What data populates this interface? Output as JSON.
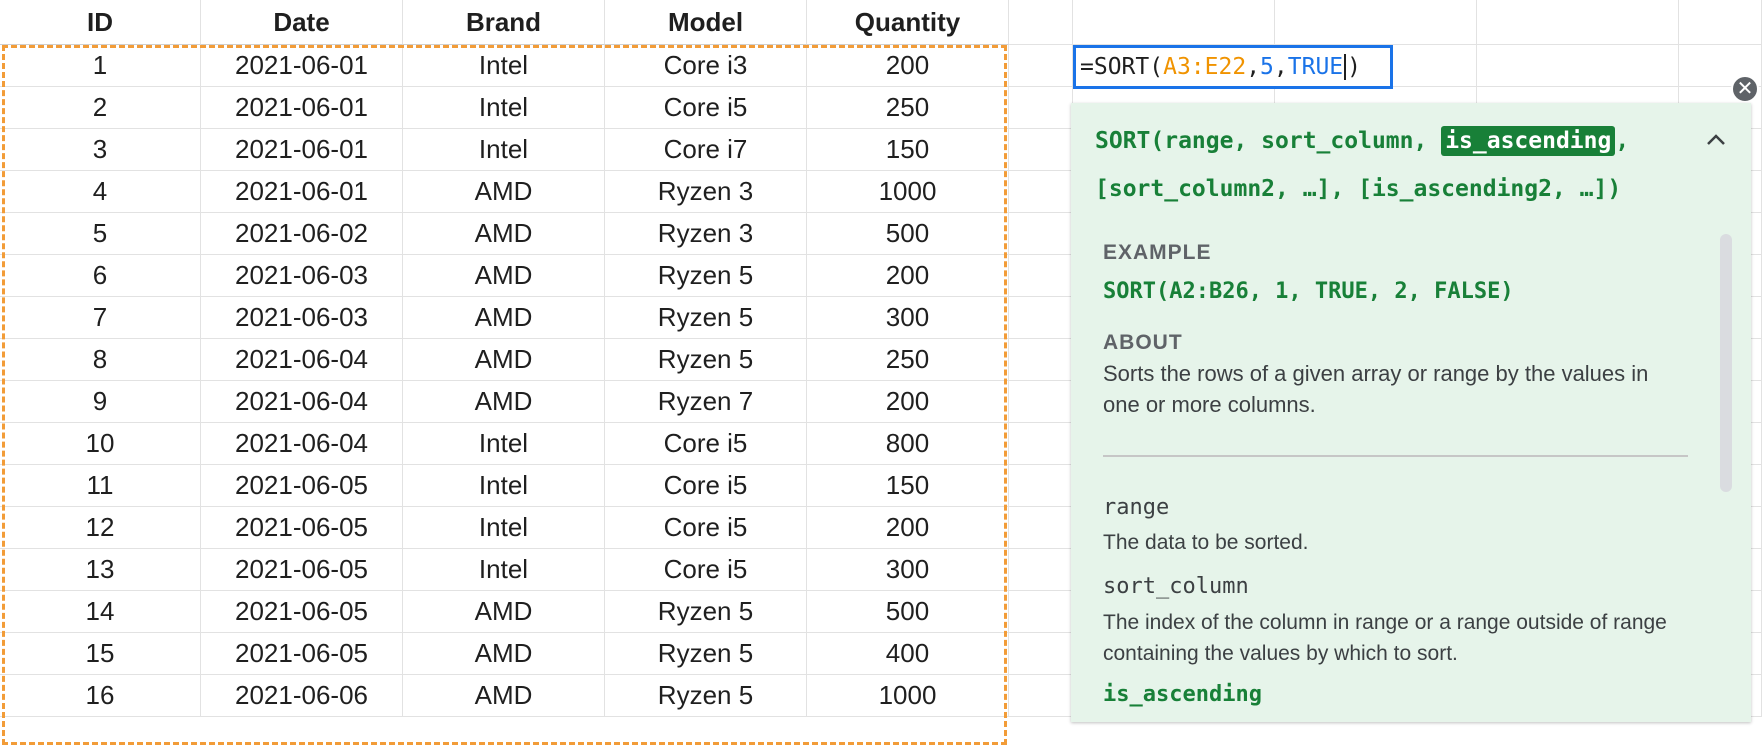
{
  "sheet": {
    "headers": [
      "ID",
      "Date",
      "Brand",
      "Model",
      "Quantity"
    ],
    "rows": [
      [
        "1",
        "2021-06-01",
        "Intel",
        "Core i3",
        "200"
      ],
      [
        "2",
        "2021-06-01",
        "Intel",
        "Core i5",
        "250"
      ],
      [
        "3",
        "2021-06-01",
        "Intel",
        "Core i7",
        "150"
      ],
      [
        "4",
        "2021-06-01",
        "AMD",
        "Ryzen 3",
        "1000"
      ],
      [
        "5",
        "2021-06-02",
        "AMD",
        "Ryzen 3",
        "500"
      ],
      [
        "6",
        "2021-06-03",
        "AMD",
        "Ryzen 5",
        "200"
      ],
      [
        "7",
        "2021-06-03",
        "AMD",
        "Ryzen 5",
        "300"
      ],
      [
        "8",
        "2021-06-04",
        "AMD",
        "Ryzen 5",
        "250"
      ],
      [
        "9",
        "2021-06-04",
        "AMD",
        "Ryzen 7",
        "200"
      ],
      [
        "10",
        "2021-06-04",
        "Intel",
        "Core i5",
        "800"
      ],
      [
        "11",
        "2021-06-05",
        "Intel",
        "Core i5",
        "150"
      ],
      [
        "12",
        "2021-06-05",
        "Intel",
        "Core i5",
        "200"
      ],
      [
        "13",
        "2021-06-05",
        "Intel",
        "Core i5",
        "300"
      ],
      [
        "14",
        "2021-06-05",
        "AMD",
        "Ryzen 5",
        "500"
      ],
      [
        "15",
        "2021-06-05",
        "AMD",
        "Ryzen 5",
        "400"
      ],
      [
        "16",
        "2021-06-06",
        "AMD",
        "Ryzen 5",
        "1000"
      ]
    ]
  },
  "formula": {
    "eq": "=SORT(",
    "range": "A3:E22",
    "sep1": ", ",
    "col": "5",
    "sep2": ", ",
    "flag": "TRUE",
    "close": ")"
  },
  "help": {
    "close_icon": "✕",
    "collapse_icon": "^",
    "signature": {
      "prefix": "SORT(range, sort_column, ",
      "highlight": "is_ascending",
      "rest": ", [sort_column2, …], [is_ascending2, …])"
    },
    "example_title": "EXAMPLE",
    "example_code": "SORT(A2:B26, 1, TRUE, 2, FALSE)",
    "about_title": "ABOUT",
    "about_text": "Sorts the rows of a given array or range by the values in one or more columns.",
    "params": [
      {
        "name": "range",
        "desc": "The data to be sorted."
      },
      {
        "name": "sort_column",
        "desc": "The index of the column in range or a range outside of range containing the values by which to sort."
      },
      {
        "name": "is_ascending",
        "desc": ""
      }
    ]
  },
  "colors": {
    "copy_border": "#f29c38",
    "formula_border": "#1a73e8",
    "range_token": "#f09300",
    "value_token": "#1a73e8",
    "help_bg": "#e6f4ea",
    "help_accent": "#188038"
  }
}
